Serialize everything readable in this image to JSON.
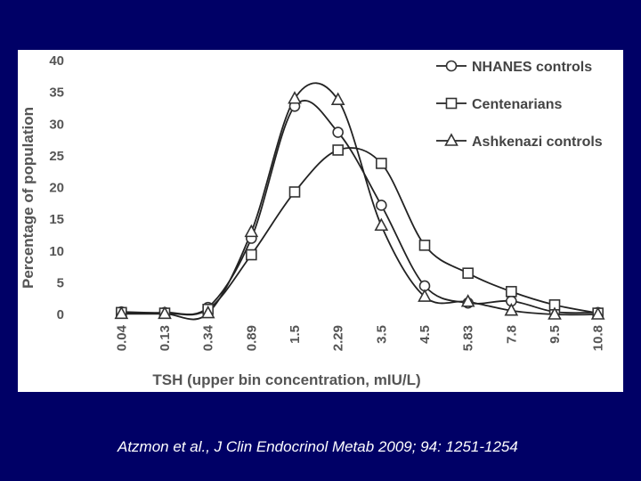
{
  "chart_data": {
    "type": "line",
    "title": "",
    "xlabel": "TSH (upper bin concentration, mIU/L)",
    "ylabel": "Percentage of population",
    "ylim": [
      0,
      40
    ],
    "yticks": [
      "0",
      "5",
      "10",
      "15",
      "20",
      "25",
      "30",
      "35",
      "40"
    ],
    "categories": [
      "0.04",
      "0.13",
      "0.34",
      "0.89",
      "1.5",
      "2.29",
      "3.5",
      "4.5",
      "5.83",
      "7.8",
      "9.5",
      "10.8"
    ],
    "legend_position": "top-right",
    "series": [
      {
        "name": "NHANES controls",
        "marker": "circle",
        "values": [
          0.4,
          0.3,
          1.1,
          12.0,
          32.8,
          28.7,
          17.2,
          4.5,
          1.8,
          2.1,
          0.4,
          0.3
        ]
      },
      {
        "name": "Centenarians",
        "marker": "square",
        "values": [
          0.3,
          0.2,
          0.8,
          9.4,
          19.3,
          25.9,
          23.8,
          10.9,
          6.5,
          3.6,
          1.5,
          0.2
        ]
      },
      {
        "name": "Ashkenazi controls",
        "marker": "triangle",
        "values": [
          0.1,
          0.1,
          0.2,
          13.0,
          34.0,
          33.8,
          14.0,
          2.8,
          2.0,
          0.6,
          0.0,
          0.0
        ]
      }
    ]
  },
  "citation": "Atzmon et al., J Clin Endocrinol Metab 2009; 94: 1251-1254"
}
